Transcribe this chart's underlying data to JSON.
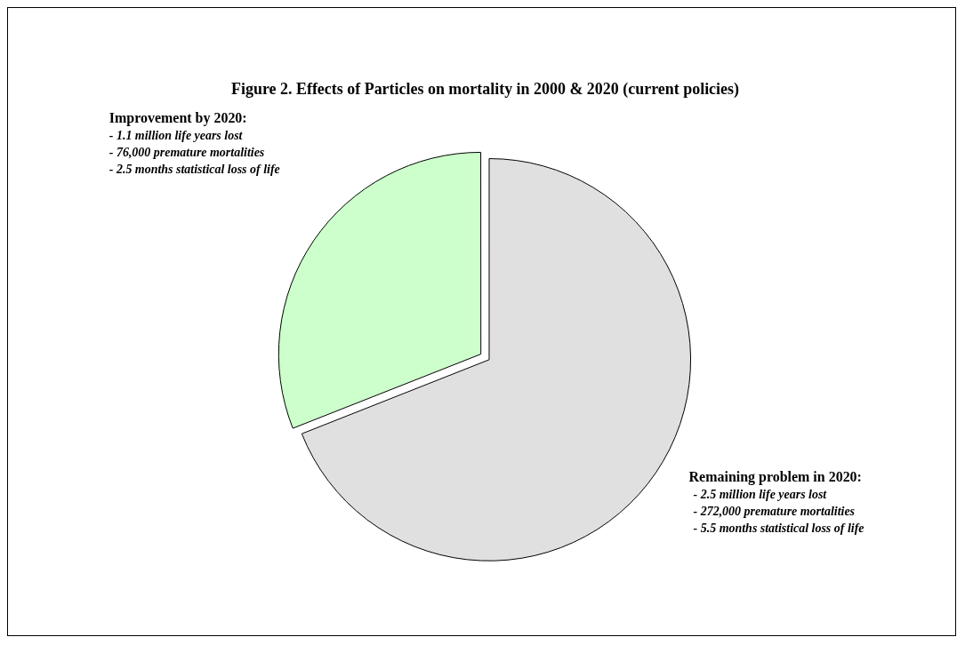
{
  "chart_data": {
    "type": "pie",
    "title": "Figure 2. Effects of Particles on mortality in 2000 & 2020 (current policies)",
    "categories": [
      null,
      null
    ],
    "values": [
      31,
      69
    ],
    "colors": [
      "#ccffcc",
      "#e0e0e0"
    ],
    "annotations": [
      "Improvement by 2020:",
      "- 1.1 million life years lost",
      "- 76,000 premature mortalities",
      "- 2.5 months statistical loss of life",
      "Remaining problem in 2020:",
      "- 2.5 million life years lost",
      "- 272,000 premature mortalities",
      "- 5.5 months statistical loss of life"
    ]
  }
}
